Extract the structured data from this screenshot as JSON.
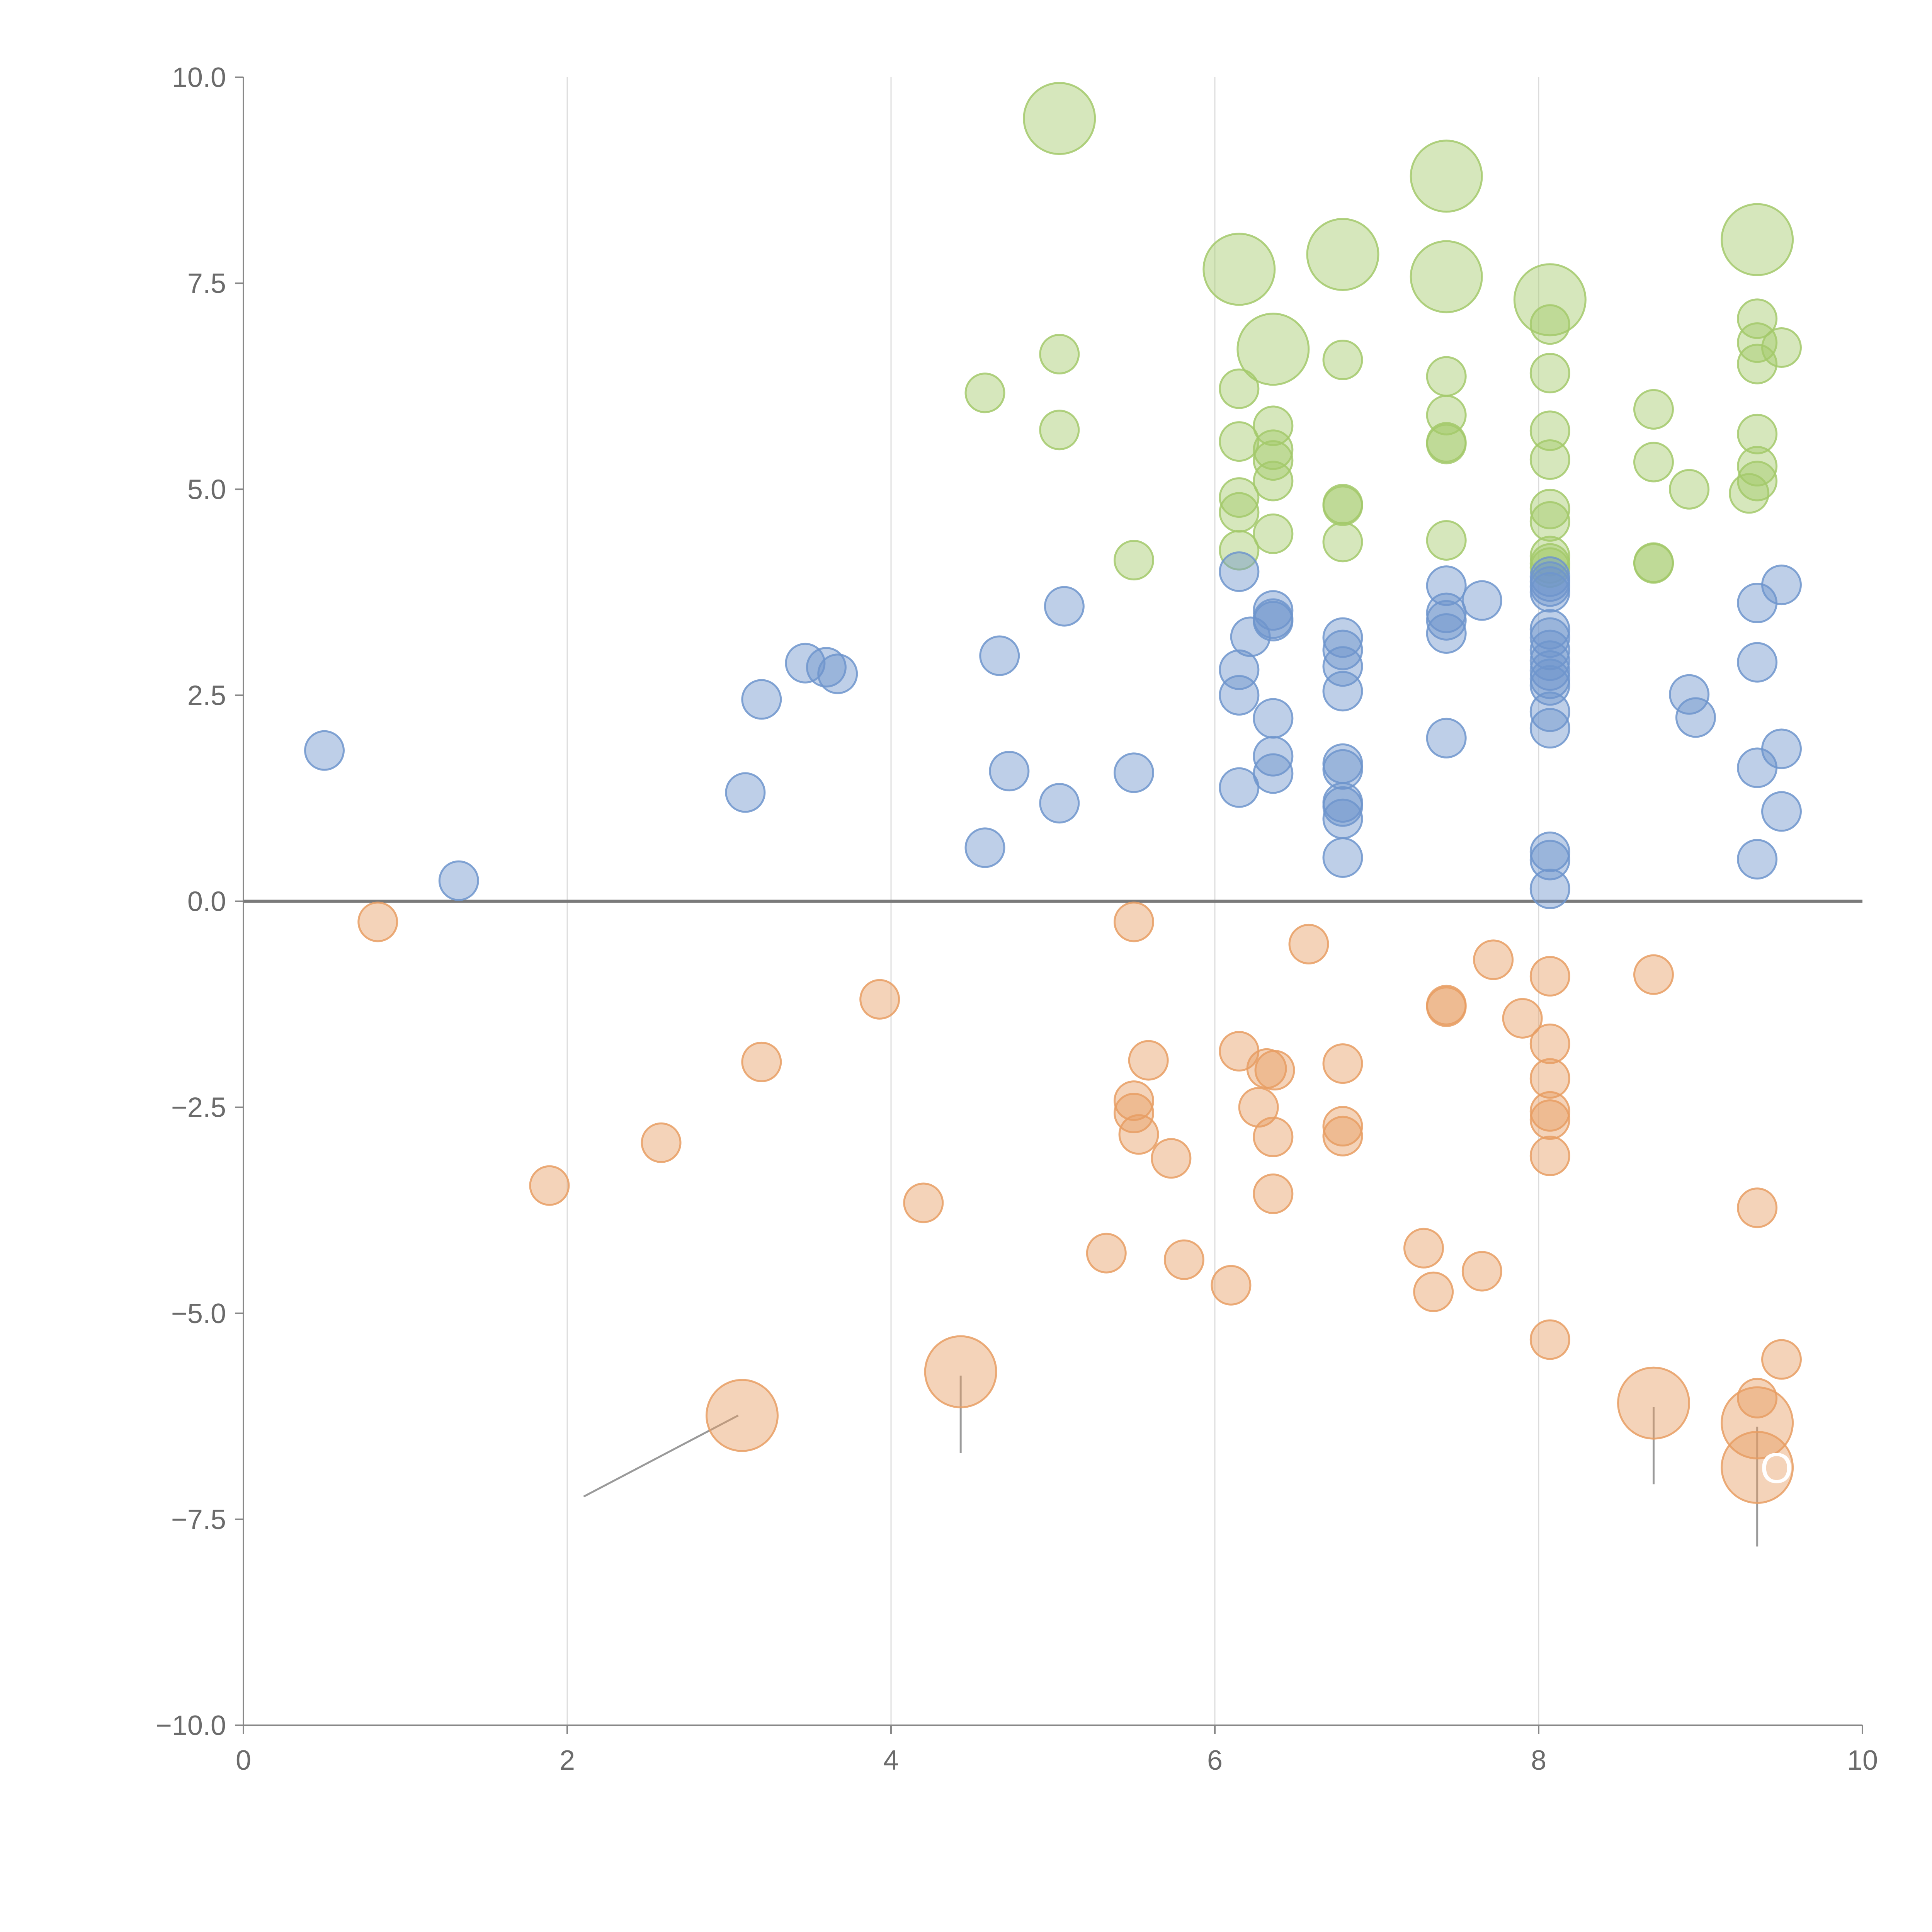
{
  "chart_data": {
    "type": "scatter",
    "title": "",
    "xlabel": "",
    "ylabel": "",
    "xlim": [
      0,
      10
    ],
    "ylim": [
      -10,
      10
    ],
    "x_ticks": [
      "0",
      "2",
      "4",
      "6",
      "8",
      "10"
    ],
    "y_ticks": [
      "10.0",
      "7.5",
      "5.0",
      "2.5",
      "0.0",
      "−2.5",
      "−5.0",
      "−7.5",
      "−10.0"
    ],
    "grid": {
      "vertical": true,
      "horizontal": false
    },
    "zero_line": true,
    "marker_colors": {
      "green": "#a3c96b",
      "blue": "#6f95cd",
      "orange": "#e79d63"
    },
    "series": [
      {
        "color": "#a3c96b",
        "points": [
          {
            "x": 4.58,
            "y": 6.17
          },
          {
            "x": 5.04,
            "y": 6.64
          },
          {
            "x": 5.04,
            "y": 5.72
          },
          {
            "x": 5.5,
            "y": 4.14
          },
          {
            "x": 6.15,
            "y": 6.22
          },
          {
            "x": 6.15,
            "y": 5.58
          },
          {
            "x": 6.15,
            "y": 4.9
          },
          {
            "x": 6.15,
            "y": 4.72
          },
          {
            "x": 6.15,
            "y": 4.26
          },
          {
            "x": 6.36,
            "y": 5.77
          },
          {
            "x": 6.36,
            "y": 5.48
          },
          {
            "x": 6.36,
            "y": 5.35
          },
          {
            "x": 6.36,
            "y": 5.1
          },
          {
            "x": 6.36,
            "y": 4.46
          },
          {
            "x": 6.79,
            "y": 6.57
          },
          {
            "x": 6.79,
            "y": 4.82
          },
          {
            "x": 6.79,
            "y": 4.8
          },
          {
            "x": 6.79,
            "y": 4.36
          },
          {
            "x": 7.43,
            "y": 6.37
          },
          {
            "x": 7.43,
            "y": 5.9
          },
          {
            "x": 7.43,
            "y": 5.57
          },
          {
            "x": 7.43,
            "y": 5.55
          },
          {
            "x": 7.43,
            "y": 4.38
          },
          {
            "x": 8.07,
            "y": 7.0
          },
          {
            "x": 8.07,
            "y": 6.41
          },
          {
            "x": 8.07,
            "y": 5.71
          },
          {
            "x": 8.07,
            "y": 5.36
          },
          {
            "x": 8.07,
            "y": 4.76
          },
          {
            "x": 8.07,
            "y": 4.61
          },
          {
            "x": 8.07,
            "y": 4.19
          },
          {
            "x": 8.07,
            "y": 4.1
          },
          {
            "x": 8.07,
            "y": 4.05
          },
          {
            "x": 8.71,
            "y": 5.97
          },
          {
            "x": 8.71,
            "y": 5.33
          },
          {
            "x": 8.71,
            "y": 4.11
          },
          {
            "x": 8.71,
            "y": 4.1
          },
          {
            "x": 8.93,
            "y": 5.0
          },
          {
            "x": 9.35,
            "y": 7.07
          },
          {
            "x": 9.35,
            "y": 6.78
          },
          {
            "x": 9.35,
            "y": 6.52
          },
          {
            "x": 9.35,
            "y": 5.67
          },
          {
            "x": 9.35,
            "y": 5.28
          },
          {
            "x": 9.35,
            "y": 5.1
          },
          {
            "x": 9.3,
            "y": 4.95
          },
          {
            "x": 9.5,
            "y": 6.72
          }
        ],
        "large_points": [
          {
            "x": 5.04,
            "y": 9.5
          },
          {
            "x": 7.43,
            "y": 8.8
          },
          {
            "x": 6.79,
            "y": 7.85
          },
          {
            "x": 6.15,
            "y": 7.67
          },
          {
            "x": 7.43,
            "y": 7.58
          },
          {
            "x": 8.07,
            "y": 7.3
          },
          {
            "x": 9.35,
            "y": 8.03
          },
          {
            "x": 6.36,
            "y": 6.7
          }
        ]
      },
      {
        "color": "#6f95cd",
        "points": [
          {
            "x": 0.5,
            "y": 1.83
          },
          {
            "x": 1.33,
            "y": 0.25
          },
          {
            "x": 3.1,
            "y": 1.32
          },
          {
            "x": 3.2,
            "y": 2.45
          },
          {
            "x": 3.47,
            "y": 2.89
          },
          {
            "x": 3.6,
            "y": 2.84
          },
          {
            "x": 3.67,
            "y": 2.76
          },
          {
            "x": 4.58,
            "y": 0.65
          },
          {
            "x": 4.67,
            "y": 2.98
          },
          {
            "x": 4.73,
            "y": 1.58
          },
          {
            "x": 5.04,
            "y": 1.19
          },
          {
            "x": 5.07,
            "y": 3.58
          },
          {
            "x": 5.5,
            "y": 1.56
          },
          {
            "x": 6.15,
            "y": 4.0
          },
          {
            "x": 6.15,
            "y": 2.81
          },
          {
            "x": 6.15,
            "y": 2.5
          },
          {
            "x": 6.15,
            "y": 1.38
          },
          {
            "x": 6.22,
            "y": 3.21
          },
          {
            "x": 6.36,
            "y": 3.53
          },
          {
            "x": 6.36,
            "y": 3.43
          },
          {
            "x": 6.36,
            "y": 3.4
          },
          {
            "x": 6.36,
            "y": 2.22
          },
          {
            "x": 6.36,
            "y": 1.76
          },
          {
            "x": 6.36,
            "y": 1.55
          },
          {
            "x": 6.79,
            "y": 3.2
          },
          {
            "x": 6.79,
            "y": 3.05
          },
          {
            "x": 6.79,
            "y": 2.85
          },
          {
            "x": 6.79,
            "y": 2.55
          },
          {
            "x": 6.79,
            "y": 1.67
          },
          {
            "x": 6.79,
            "y": 1.6
          },
          {
            "x": 6.79,
            "y": 1.2
          },
          {
            "x": 6.79,
            "y": 1.15
          },
          {
            "x": 6.79,
            "y": 1.0
          },
          {
            "x": 6.79,
            "y": 0.53
          },
          {
            "x": 7.43,
            "y": 3.83
          },
          {
            "x": 7.43,
            "y": 3.5
          },
          {
            "x": 7.43,
            "y": 3.41
          },
          {
            "x": 7.43,
            "y": 3.25
          },
          {
            "x": 7.43,
            "y": 1.98
          },
          {
            "x": 7.65,
            "y": 3.65
          },
          {
            "x": 8.07,
            "y": 3.94
          },
          {
            "x": 8.07,
            "y": 3.88
          },
          {
            "x": 8.07,
            "y": 3.82
          },
          {
            "x": 8.07,
            "y": 3.75
          },
          {
            "x": 8.07,
            "y": 3.3
          },
          {
            "x": 8.07,
            "y": 3.2
          },
          {
            "x": 8.07,
            "y": 3.05
          },
          {
            "x": 8.07,
            "y": 2.92
          },
          {
            "x": 8.07,
            "y": 2.8
          },
          {
            "x": 8.07,
            "y": 2.7
          },
          {
            "x": 8.07,
            "y": 2.62
          },
          {
            "x": 8.07,
            "y": 2.3
          },
          {
            "x": 8.07,
            "y": 2.1
          },
          {
            "x": 8.07,
            "y": 0.6
          },
          {
            "x": 8.07,
            "y": 0.5
          },
          {
            "x": 8.07,
            "y": 0.15
          },
          {
            "x": 8.93,
            "y": 2.51
          },
          {
            "x": 8.97,
            "y": 2.23
          },
          {
            "x": 9.35,
            "y": 3.62
          },
          {
            "x": 9.35,
            "y": 2.9
          },
          {
            "x": 9.35,
            "y": 1.62
          },
          {
            "x": 9.35,
            "y": 0.51
          },
          {
            "x": 9.5,
            "y": 3.84
          },
          {
            "x": 9.5,
            "y": 1.85
          },
          {
            "x": 9.5,
            "y": 1.09
          }
        ],
        "large_points": []
      },
      {
        "color": "#e79d63",
        "points": [
          {
            "x": 0.83,
            "y": -0.25
          },
          {
            "x": 1.89,
            "y": -3.45
          },
          {
            "x": 2.58,
            "y": -2.93
          },
          {
            "x": 3.2,
            "y": -1.95
          },
          {
            "x": 3.93,
            "y": -1.19
          },
          {
            "x": 4.2,
            "y": -3.66
          },
          {
            "x": 5.33,
            "y": -4.27
          },
          {
            "x": 5.5,
            "y": -0.25
          },
          {
            "x": 5.5,
            "y": -2.42
          },
          {
            "x": 5.5,
            "y": -2.57
          },
          {
            "x": 5.53,
            "y": -2.83
          },
          {
            "x": 5.59,
            "y": -1.93
          },
          {
            "x": 5.73,
            "y": -3.12
          },
          {
            "x": 5.81,
            "y": -4.35
          },
          {
            "x": 6.1,
            "y": -4.66
          },
          {
            "x": 6.15,
            "y": -1.82
          },
          {
            "x": 6.27,
            "y": -2.5
          },
          {
            "x": 6.32,
            "y": -2.03
          },
          {
            "x": 6.37,
            "y": -2.05
          },
          {
            "x": 6.36,
            "y": -2.86
          },
          {
            "x": 6.36,
            "y": -3.55
          },
          {
            "x": 6.58,
            "y": -0.52
          },
          {
            "x": 6.79,
            "y": -1.97
          },
          {
            "x": 6.79,
            "y": -2.73
          },
          {
            "x": 6.79,
            "y": -2.85
          },
          {
            "x": 7.29,
            "y": -4.21
          },
          {
            "x": 7.35,
            "y": -4.74
          },
          {
            "x": 7.43,
            "y": -1.26
          },
          {
            "x": 7.43,
            "y": -1.28
          },
          {
            "x": 7.65,
            "y": -4.49
          },
          {
            "x": 7.72,
            "y": -0.71
          },
          {
            "x": 7.9,
            "y": -1.42
          },
          {
            "x": 8.07,
            "y": -0.91
          },
          {
            "x": 8.07,
            "y": -1.73
          },
          {
            "x": 8.07,
            "y": -2.15
          },
          {
            "x": 8.07,
            "y": -2.55
          },
          {
            "x": 8.07,
            "y": -2.65
          },
          {
            "x": 8.07,
            "y": -3.09
          },
          {
            "x": 8.07,
            "y": -5.32
          },
          {
            "x": 8.71,
            "y": -0.89
          },
          {
            "x": 9.35,
            "y": -3.72
          },
          {
            "x": 9.35,
            "y": -6.03
          },
          {
            "x": 9.5,
            "y": -5.56
          }
        ],
        "large_points": [
          {
            "x": 3.08,
            "y": -6.24
          },
          {
            "x": 4.43,
            "y": -5.71
          },
          {
            "x": 8.71,
            "y": -6.09
          },
          {
            "x": 9.35,
            "y": -6.33
          },
          {
            "x": 9.35,
            "y": -6.87
          }
        ]
      }
    ],
    "annotations": [
      {
        "text": "OR",
        "x": 9.35,
        "y": -6.87
      }
    ]
  }
}
